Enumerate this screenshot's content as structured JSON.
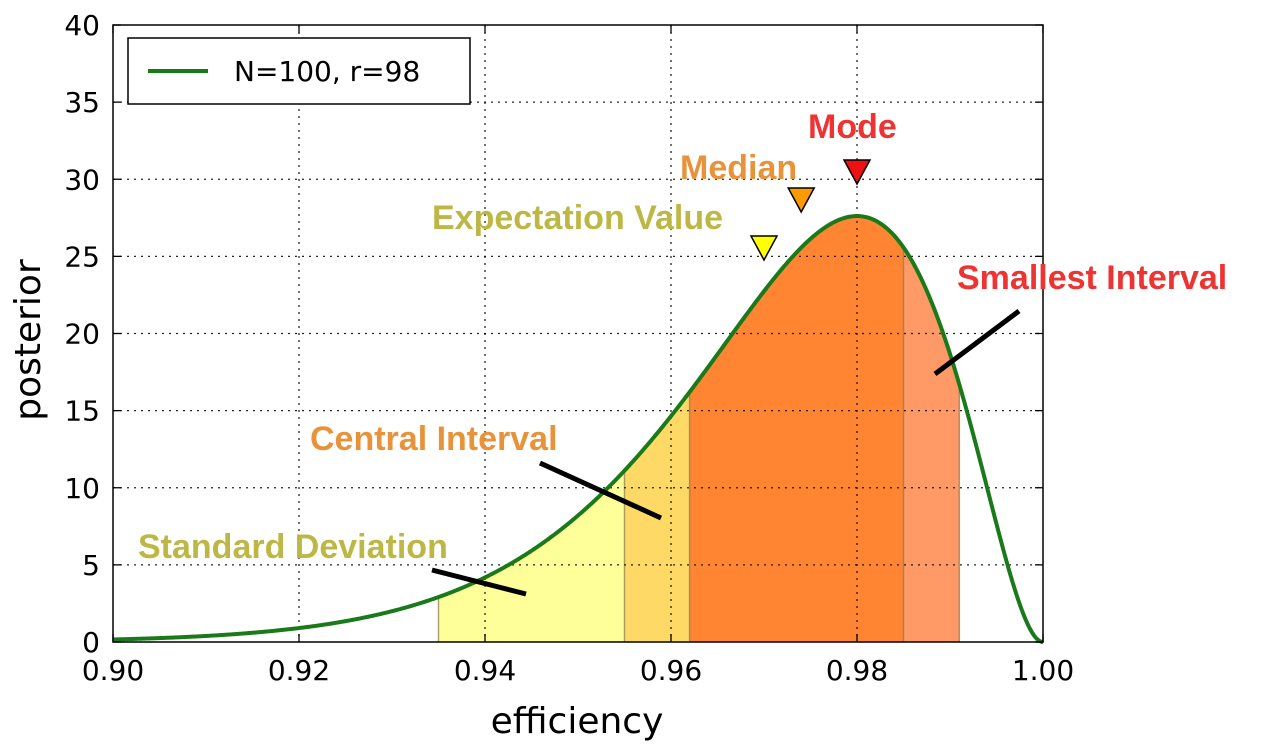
{
  "chart_data": {
    "type": "area",
    "title": "",
    "xlabel": "efficiency",
    "ylabel": "posterior",
    "xlim": [
      0.9,
      1.0
    ],
    "ylim": [
      0,
      40
    ],
    "grid": true,
    "legend_position": "top-left",
    "x_ticks": [
      "0.90",
      "0.92",
      "0.94",
      "0.96",
      "0.98",
      "1.00"
    ],
    "y_ticks": [
      "0",
      "5",
      "10",
      "15",
      "20",
      "25",
      "30",
      "35",
      "40"
    ],
    "series": [
      {
        "name": "N=100, r=98",
        "color": "#1a7a1a",
        "distribution": "beta(99, 3)",
        "x": [
          0.9,
          0.91,
          0.92,
          0.93,
          0.935,
          0.94,
          0.945,
          0.95,
          0.955,
          0.96,
          0.965,
          0.97,
          0.975,
          0.98,
          0.985,
          0.99,
          0.995,
          1.0
        ],
        "y": [
          0.3,
          0.5,
          1.0,
          2.2,
          3.1,
          4.4,
          6.2,
          8.5,
          11.1,
          14.2,
          17.7,
          21.3,
          24.7,
          27.5,
          28.0,
          19.6,
          8.2,
          0.0
        ]
      }
    ],
    "shaded_regions": [
      {
        "name": "Standard Deviation",
        "x_range": [
          0.935,
          0.991
        ],
        "color": "#ffff99"
      },
      {
        "name": "Central Interval",
        "x_range": [
          0.955,
          0.991
        ],
        "color": "#ffd966"
      },
      {
        "name": "Smallest Interval",
        "x_range": [
          0.962,
          0.991
        ],
        "color": "#ff9966"
      },
      {
        "name": "Smallest Interval core",
        "x_range": [
          0.962,
          0.985
        ],
        "color": "#ff8533"
      }
    ],
    "markers": [
      {
        "label": "Expectation Value",
        "x": 0.97,
        "color": "#ffff00",
        "text_color": "#bdb845"
      },
      {
        "label": "Median",
        "x": 0.974,
        "color": "#ff9900",
        "text_color": "#e8923a"
      },
      {
        "label": "Mode",
        "x": 0.98,
        "color": "#ee1111",
        "text_color": "#ee3333"
      }
    ],
    "annotations": [
      {
        "text": "Standard Deviation",
        "color": "#bdb845"
      },
      {
        "text": "Central Interval",
        "color": "#e8923a"
      },
      {
        "text": "Smallest Interval",
        "color": "#ee3333"
      }
    ]
  }
}
